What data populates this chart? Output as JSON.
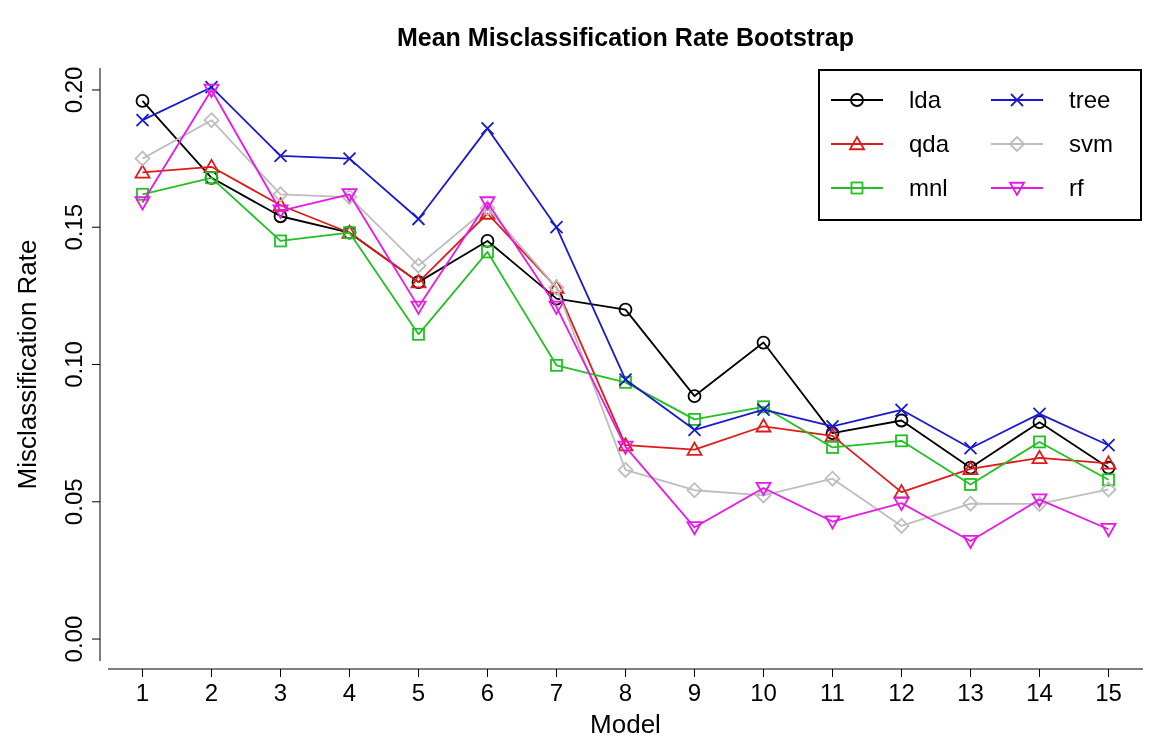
{
  "chart_data": {
    "type": "line",
    "title": "Mean Misclassification Rate Bootstrap",
    "xlabel": "Model",
    "ylabel": "Misclassification Rate",
    "x": [
      1,
      2,
      3,
      4,
      5,
      6,
      7,
      8,
      9,
      10,
      11,
      12,
      13,
      14,
      15
    ],
    "xlim": [
      0.5,
      15.5
    ],
    "xticks": [
      1,
      2,
      3,
      4,
      5,
      6,
      7,
      8,
      9,
      10,
      11,
      12,
      13,
      14,
      15
    ],
    "ylim": [
      -0.008,
      0.208
    ],
    "yticks": [
      {
        "value": 0,
        "label": "0.00"
      },
      {
        "value": 0.05,
        "label": "0.05"
      },
      {
        "value": 0.1,
        "label": "0.10"
      },
      {
        "value": 0.15,
        "label": "0.15"
      },
      {
        "value": 0.2,
        "label": "0.20"
      }
    ],
    "grid": false,
    "legend": "top right",
    "series": [
      {
        "name": "lda",
        "color": "#000000",
        "marker": "circle",
        "values": [
          0.196,
          0.168,
          0.154,
          0.148,
          0.13,
          0.145,
          0.124,
          0.12,
          0.0885,
          0.108,
          0.075,
          0.0796,
          0.0624,
          0.079,
          0.0624
        ]
      },
      {
        "name": "qda",
        "color": "#df1a1a",
        "marker": "triangle",
        "values": [
          0.17,
          0.172,
          0.158,
          0.148,
          0.13,
          0.155,
          0.128,
          0.0706,
          0.069,
          0.0775,
          0.074,
          0.0535,
          0.062,
          0.066,
          0.064
        ]
      },
      {
        "name": "mnl",
        "color": "#22c022",
        "marker": "square",
        "values": [
          0.162,
          0.168,
          0.145,
          0.148,
          0.111,
          0.141,
          0.0997,
          0.0935,
          0.08,
          0.0846,
          0.0698,
          0.0722,
          0.0563,
          0.0718,
          0.058
        ]
      },
      {
        "name": "tree",
        "color": "#1a1acc",
        "marker": "cross",
        "values": [
          0.189,
          0.201,
          0.176,
          0.175,
          0.153,
          0.186,
          0.15,
          0.0945,
          0.0762,
          0.0836,
          0.0775,
          0.0835,
          0.0695,
          0.082,
          0.0706
        ]
      },
      {
        "name": "svm",
        "color": "#bebebe",
        "marker": "diamond",
        "values": [
          0.175,
          0.189,
          0.162,
          0.161,
          0.136,
          0.157,
          0.128,
          0.0616,
          0.0542,
          0.0523,
          0.0584,
          0.0412,
          0.0493,
          0.0492,
          0.0545
        ]
      },
      {
        "name": "rf",
        "color": "#e619e6",
        "marker": "triangle-down",
        "values": [
          0.159,
          0.2,
          0.156,
          0.162,
          0.121,
          0.159,
          0.121,
          0.07,
          0.0407,
          0.055,
          0.0428,
          0.0495,
          0.0357,
          0.0508,
          0.04
        ]
      }
    ]
  }
}
